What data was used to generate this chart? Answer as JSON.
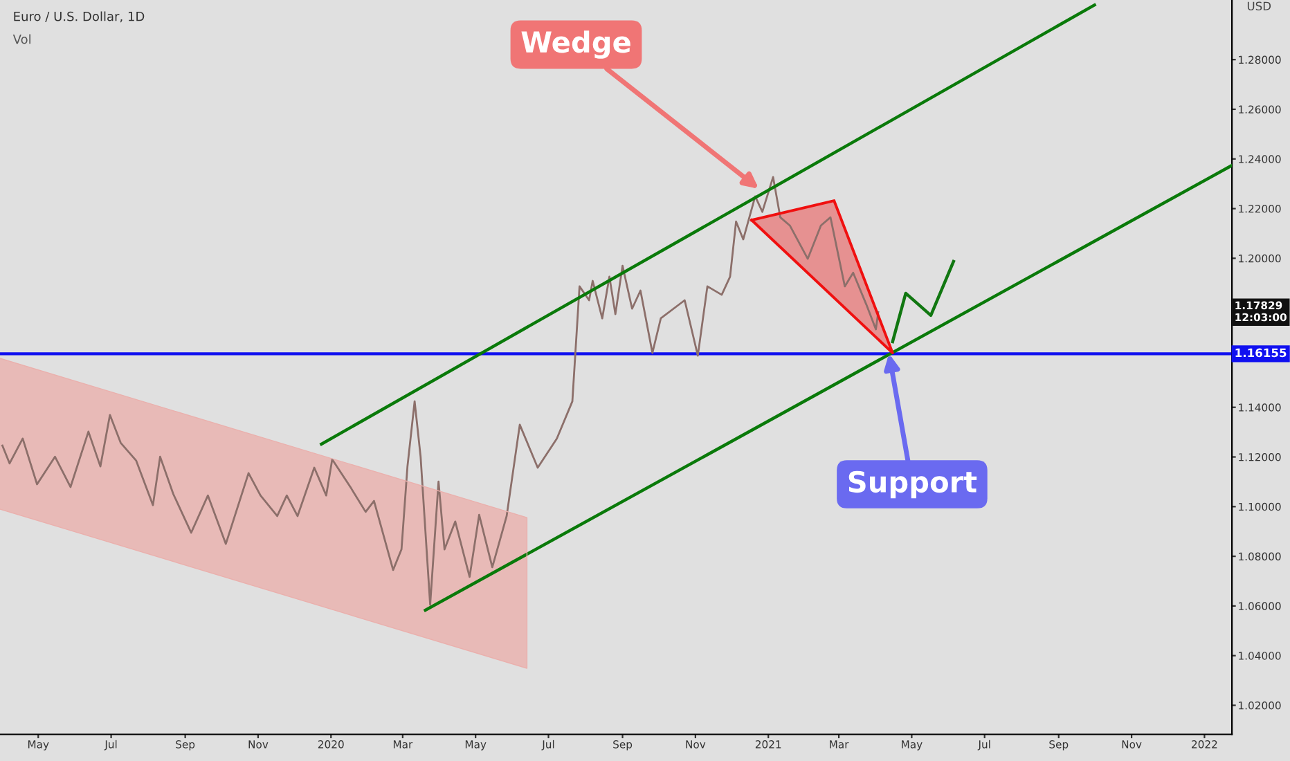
{
  "chart_data": {
    "type": "line",
    "title": "Euro / U.S. Dollar, 1D",
    "ylabel": "USD",
    "xlim": [
      "2019-03-30",
      "2022-01-24"
    ],
    "ylim": [
      1.0083,
      1.304
    ],
    "xticks": [
      {
        "value": "2019-05-01",
        "label": "May"
      },
      {
        "value": "2019-07-01",
        "label": "Jul"
      },
      {
        "value": "2019-09-01",
        "label": "Sep"
      },
      {
        "value": "2019-11-01",
        "label": "Nov"
      },
      {
        "value": "2020-01-01",
        "label": "2020"
      },
      {
        "value": "2020-03-01",
        "label": "Mar"
      },
      {
        "value": "2020-05-01",
        "label": "May"
      },
      {
        "value": "2020-07-01",
        "label": "Jul"
      },
      {
        "value": "2020-09-01",
        "label": "Sep"
      },
      {
        "value": "2020-11-01",
        "label": "Nov"
      },
      {
        "value": "2021-01-01",
        "label": "2021"
      },
      {
        "value": "2021-03-01",
        "label": "Mar"
      },
      {
        "value": "2021-05-01",
        "label": "May"
      },
      {
        "value": "2021-07-01",
        "label": "Jul"
      },
      {
        "value": "2021-09-01",
        "label": "Sep"
      },
      {
        "value": "2021-11-01",
        "label": "Nov"
      },
      {
        "value": "2022-01-01",
        "label": "2022"
      }
    ],
    "yticks": [
      {
        "value": 1.02,
        "label": "1.02000"
      },
      {
        "value": 1.04,
        "label": "1.04000"
      },
      {
        "value": 1.06,
        "label": "1.06000"
      },
      {
        "value": 1.08,
        "label": "1.08000"
      },
      {
        "value": 1.1,
        "label": "1.10000"
      },
      {
        "value": 1.12,
        "label": "1.12000"
      },
      {
        "value": 1.14,
        "label": "1.14000"
      },
      {
        "value": 1.2,
        "label": "1.20000"
      },
      {
        "value": 1.22,
        "label": "1.22000"
      },
      {
        "value": 1.24,
        "label": "1.24000"
      },
      {
        "value": 1.26,
        "label": "1.26000"
      },
      {
        "value": 1.28,
        "label": "1.28000"
      }
    ],
    "series": [
      {
        "type": "area",
        "color": "#eab0ad",
        "x": [
          "2019-03-30",
          "2020-06-13",
          "2020-06-13",
          "2019-03-30"
        ],
        "values": [
          1.1597,
          1.0956,
          1.0349,
          1.099
        ]
      },
      {
        "type": "line",
        "color": "#8c6f6a",
        "x": [
          "2019-04-01",
          "2019-04-07",
          "2019-04-18",
          "2019-04-30",
          "2019-05-15",
          "2019-05-28",
          "2019-06-12",
          "2019-06-22",
          "2019-06-30",
          "2019-07-09",
          "2019-07-22",
          "2019-08-05",
          "2019-08-11",
          "2019-08-22",
          "2019-09-06",
          "2019-09-20",
          "2019-10-05",
          "2019-10-24",
          "2019-11-03",
          "2019-11-17",
          "2019-11-25",
          "2019-12-04",
          "2019-12-18",
          "2019-12-28",
          "2020-01-02",
          "2020-01-18",
          "2020-01-30",
          "2020-02-06",
          "2020-02-22",
          "2020-02-29",
          "2020-03-05",
          "2020-03-11",
          "2020-03-16",
          "2020-03-21",
          "2020-03-24",
          "2020-03-31",
          "2020-04-05",
          "2020-04-14",
          "2020-04-26",
          "2020-05-04",
          "2020-05-15",
          "2020-05-27",
          "2020-06-07",
          "2020-06-22",
          "2020-07-08",
          "2020-07-21",
          "2020-07-27",
          "2020-08-04",
          "2020-08-07",
          "2020-08-15",
          "2020-08-21",
          "2020-08-26",
          "2020-09-01",
          "2020-09-09",
          "2020-09-16",
          "2020-09-26",
          "2020-10-03",
          "2020-10-23",
          "2020-11-03",
          "2020-11-11",
          "2020-11-23",
          "2020-11-30",
          "2020-12-05",
          "2020-12-11",
          "2020-12-21",
          "2020-12-27",
          "2021-01-05",
          "2021-01-11",
          "2021-01-19",
          "2021-02-03",
          "2021-02-14",
          "2021-02-22",
          "2021-03-06",
          "2021-03-13",
          "2021-03-24",
          "2021-04-01",
          "2021-04-03"
        ],
        "values": [
          1.1246,
          1.1174,
          1.1274,
          1.109,
          1.1201,
          1.1079,
          1.1302,
          1.1162,
          1.1369,
          1.1257,
          1.1185,
          1.1006,
          1.1201,
          1.1051,
          1.0895,
          1.1045,
          1.085,
          1.1135,
          1.1045,
          1.0962,
          1.1045,
          1.0962,
          1.1157,
          1.1045,
          1.119,
          1.1073,
          1.0979,
          1.1023,
          1.0745,
          1.0828,
          1.1162,
          1.1424,
          1.1201,
          1.0828,
          1.0605,
          1.1101,
          1.0828,
          1.094,
          1.0717,
          1.0967,
          1.0756,
          1.0962,
          1.133,
          1.1157,
          1.1274,
          1.1424,
          1.1887,
          1.1831,
          1.1909,
          1.1758,
          1.1926,
          1.1775,
          1.197,
          1.1797,
          1.187,
          1.1619,
          1.1758,
          1.1831,
          1.1608,
          1.1887,
          1.1853,
          1.1926,
          1.2148,
          1.2076,
          1.2249,
          1.2187,
          1.2327,
          1.2165,
          1.2132,
          1.1998,
          1.2132,
          1.2165,
          1.1887,
          1.1942,
          1.1814,
          1.1714,
          1.1783
        ]
      },
      {
        "type": "line",
        "color": "#0a7a0a",
        "x": [
          "2019-12-24",
          "2021-10-01"
        ],
        "values": [
          1.1252,
          1.302
        ]
      },
      {
        "type": "line",
        "color": "#0a7a0a",
        "x": [
          "2020-03-20",
          "2022-01-24"
        ],
        "values": [
          1.0583,
          1.2374
        ]
      },
      {
        "type": "area",
        "color": "#f01010",
        "x": [
          "2020-12-18",
          "2021-02-25",
          "2021-04-15",
          "2020-12-18"
        ],
        "values": [
          1.2154,
          1.2232,
          1.1619,
          1.2154
        ]
      },
      {
        "type": "line",
        "color": "#117711",
        "x": [
          "2021-04-15",
          "2021-04-26",
          "2021-05-17",
          "2021-06-05"
        ],
        "values": [
          1.1664,
          1.1859,
          1.177,
          1.1987
        ]
      }
    ],
    "ref_lines": [
      {
        "axis": "y",
        "value": 1.16155,
        "label": "1.16155",
        "color": "#1010f0"
      }
    ],
    "annotations": [
      "Vol",
      {
        "text": "1.17829\n12:03:00",
        "y": 1.17829
      },
      {
        "text": "Wedge",
        "x": "2020-12-24",
        "y": 1.228
      },
      {
        "text": "Support",
        "x": "2021-04-12",
        "y": 1.1616
      }
    ],
    "grid": false,
    "legend": false
  }
}
